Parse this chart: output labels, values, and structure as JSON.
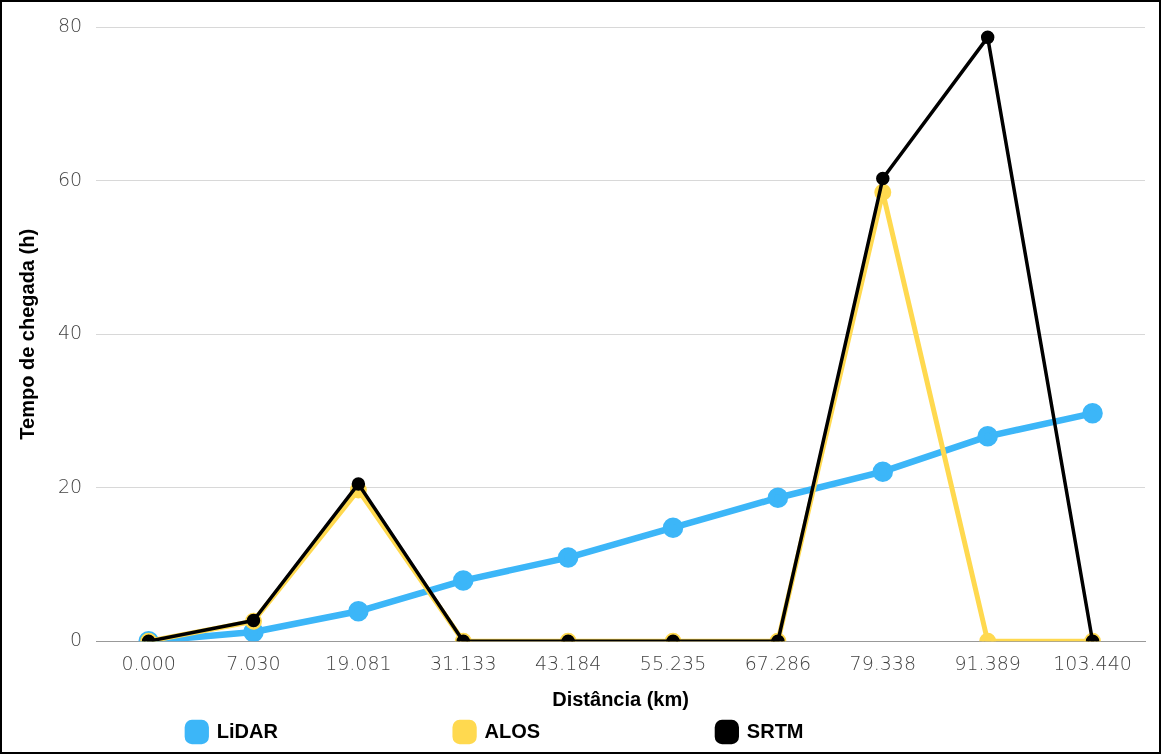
{
  "chart_data": {
    "type": "line",
    "xlabel": "Distância (km)",
    "ylabel": "Tempo de chegada (h)",
    "categories": [
      "0.000",
      "7.030",
      "19.081",
      "31.133",
      "43.184",
      "55.235",
      "67.286",
      "79.338",
      "91.389",
      "103.440"
    ],
    "series": [
      {
        "name": "LiDAR",
        "color": "#3cb6f8",
        "values": [
          0,
          1.2,
          3.9,
          7.9,
          10.9,
          14.8,
          18.7,
          22.1,
          26.7,
          29.7
        ]
      },
      {
        "name": "ALOS",
        "color": "#ffd94f",
        "values": [
          0,
          2.6,
          19.7,
          0,
          0,
          0,
          0,
          58.5,
          0,
          0
        ]
      },
      {
        "name": "SRTM",
        "color": "#000000",
        "values": [
          0,
          2.7,
          20.5,
          0,
          0,
          0,
          0,
          60.3,
          78.7,
          0
        ]
      }
    ],
    "ylim": [
      0,
      80
    ],
    "yticks": [
      0,
      20,
      40,
      60,
      80
    ],
    "grid": "y",
    "legend": "bottom",
    "marker": "circle",
    "line_style": "solid"
  }
}
